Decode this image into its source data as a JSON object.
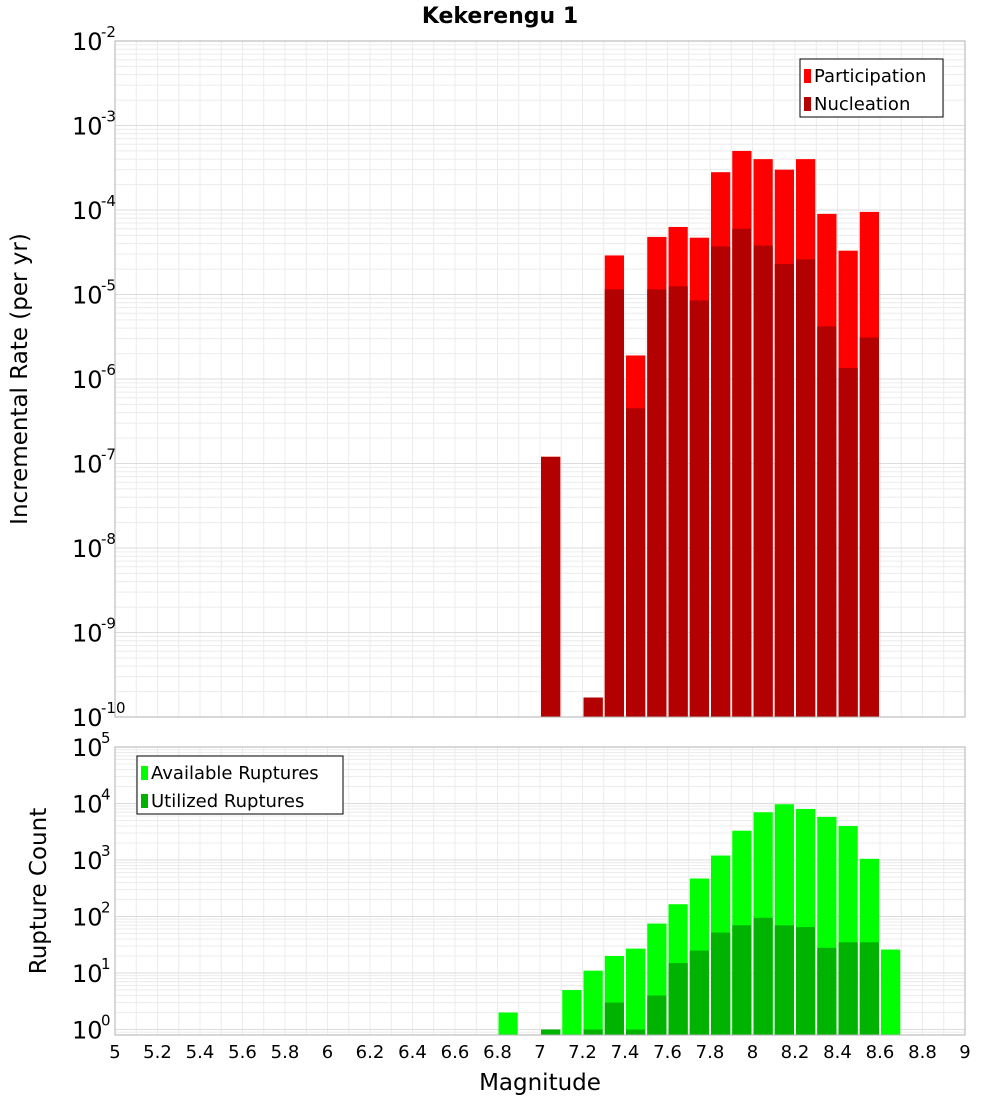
{
  "chart_data": [
    {
      "type": "bar",
      "title": "Kekerengu 1",
      "ylabel": "Incremental Rate (per yr)",
      "xlabel": "",
      "xlim": [
        5,
        9
      ],
      "ylim": [
        1e-10,
        0.01
      ],
      "yscale": "log",
      "grid": true,
      "legend_position": "top-right",
      "bar_width": 0.1,
      "x": [
        7.05,
        7.25,
        7.35,
        7.45,
        7.55,
        7.65,
        7.75,
        7.85,
        7.95,
        8.05,
        8.15,
        8.25,
        8.35,
        8.45,
        8.55
      ],
      "series": [
        {
          "name": "Participation",
          "color": "#ff0000",
          "values": [
            1.2e-07,
            1.7e-10,
            2.9e-05,
            1.9e-06,
            4.8e-05,
            6.3e-05,
            4.7e-05,
            0.00028,
            0.0005,
            0.0004,
            0.0003,
            0.0004,
            9e-05,
            3.3e-05,
            9.5e-05
          ]
        },
        {
          "name": "Nucleation",
          "color": "#b30000",
          "values": [
            1.2e-07,
            1.7e-10,
            1.15e-05,
            4.5e-07,
            1.15e-05,
            1.25e-05,
            8.5e-06,
            3.7e-05,
            6e-05,
            3.8e-05,
            2.3e-05,
            2.6e-05,
            4.2e-06,
            1.35e-06,
            3.1e-06
          ]
        }
      ]
    },
    {
      "type": "bar",
      "title": "",
      "ylabel": "Rupture Count",
      "xlabel": "Magnitude",
      "xlim": [
        5,
        9
      ],
      "ylim": [
        0.8,
        100000.0
      ],
      "yscale": "log",
      "grid": true,
      "legend_position": "top-left",
      "bar_width": 0.1,
      "x_ticks": [
        "5",
        "5.2",
        "5.4",
        "5.6",
        "5.8",
        "6",
        "6.2",
        "6.4",
        "6.6",
        "6.8",
        "7",
        "7.2",
        "7.4",
        "7.6",
        "7.8",
        "8",
        "8.2",
        "8.4",
        "8.6",
        "8.8",
        "9"
      ],
      "x": [
        6.85,
        7.05,
        7.15,
        7.25,
        7.35,
        7.45,
        7.55,
        7.65,
        7.75,
        7.85,
        7.95,
        8.05,
        8.15,
        8.25,
        8.35,
        8.45,
        8.55,
        8.65
      ],
      "series": [
        {
          "name": "Available Ruptures",
          "color": "#00ff00",
          "values": [
            2,
            1,
            5,
            11,
            20,
            27,
            75,
            165,
            470,
            1200,
            3300,
            7000,
            9700,
            8000,
            5800,
            4000,
            1050,
            26
          ]
        },
        {
          "name": "Utilized Ruptures",
          "color": "#00b300",
          "values": [
            0,
            1,
            0,
            1,
            3,
            1,
            4,
            15,
            25,
            52,
            70,
            95,
            70,
            65,
            28,
            35,
            35,
            0
          ]
        }
      ]
    }
  ]
}
